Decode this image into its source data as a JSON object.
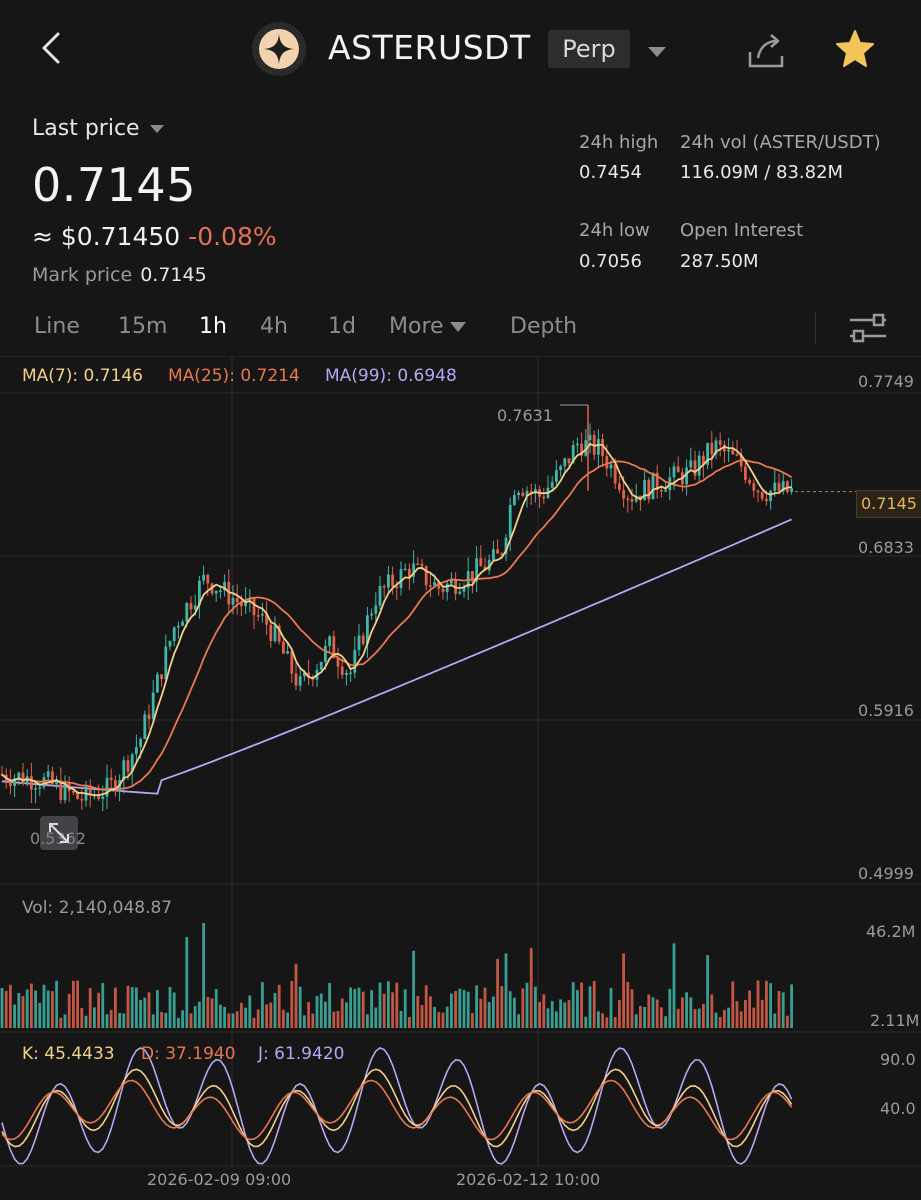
{
  "header": {
    "symbol": "ASTERUSDT",
    "contract_type": "Perp",
    "icons": [
      "back-arrow-icon",
      "aster-logo-icon",
      "chevron-down-icon",
      "share-icon",
      "star-icon"
    ]
  },
  "price": {
    "label": "Last price",
    "last": "0.7145",
    "usd": "≈ $0.71450",
    "change": "-0.08%",
    "mark_label": "Mark price",
    "mark_value": "0.7145"
  },
  "stats": {
    "high_label": "24h high",
    "high_value": "0.7454",
    "vol_label": "24h vol (ASTER/USDT)",
    "vol_value": "116.09M / 83.82M",
    "low_label": "24h low",
    "low_value": "0.7056",
    "oi_label": "Open Interest",
    "oi_value": "287.50M"
  },
  "tabs": [
    "Line",
    "15m",
    "1h",
    "4h",
    "1d",
    "More",
    "Depth"
  ],
  "active_tab": "1h",
  "indicators": {
    "ma7": "MA(7): 0.7146",
    "ma25": "MA(25): 0.7214",
    "ma99": "MA(99): 0.6948",
    "vol": "Vol: 2,140,048.87",
    "k": "K: 45.4433",
    "d": "D: 37.1940",
    "j": "J: 61.9420"
  },
  "price_axis": [
    "0.7749",
    "0.6833",
    "0.5916",
    "0.4999"
  ],
  "current_price_tag": "0.7145",
  "high_marker": "0.7631",
  "low_marker": "0.5362",
  "volume_axis": [
    "46.2M",
    "2.11M"
  ],
  "kdj_axis": [
    "90.0",
    "40.0"
  ],
  "time_axis": [
    "2026-02-09 09:00",
    "2026-02-12 10:00"
  ],
  "colors": {
    "up": "#3fb6a8",
    "down": "#e0614a",
    "ma7": "#f1d08a",
    "ma25": "#e8784f",
    "ma99": "#b8a6f2",
    "accent_star": "#f2c45a"
  },
  "chart_data": {
    "type": "line",
    "candles_visible": 190,
    "ma_series": [
      {
        "name": "MA(7)",
        "last": 0.7146
      },
      {
        "name": "MA(25)",
        "last": 0.7214
      },
      {
        "name": "MA(99)",
        "last": 0.6948
      }
    ],
    "ylim": [
      0.4999,
      0.7749
    ],
    "volume_ylim": [
      2.11,
      46.2
    ],
    "kdj_ylim": [
      40.0,
      90.0
    ]
  }
}
